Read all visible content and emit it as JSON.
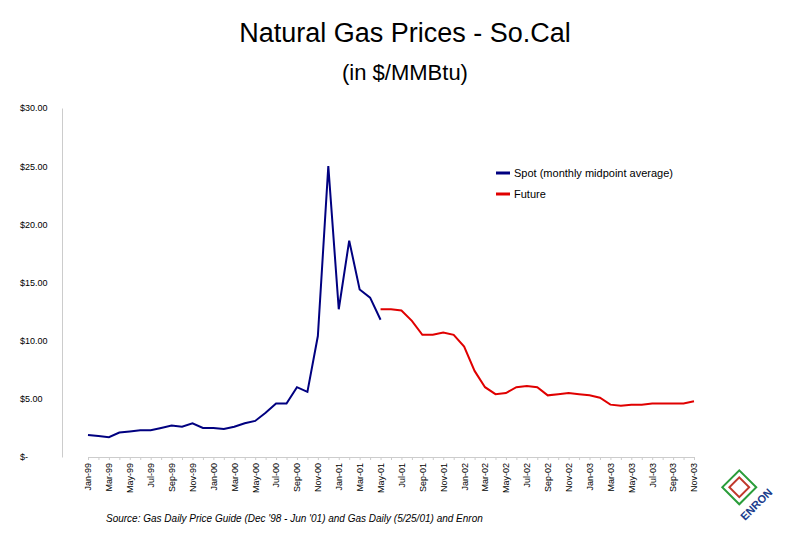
{
  "chart_data": {
    "type": "line",
    "title": "Natural Gas Prices - So.Cal",
    "subtitle": "(in $/MMBtu)",
    "source": "Source: Gas Daily Price Guide (Dec '98 - Jun '01) and Gas Daily (5/25/01) and Enron",
    "logo": "ENRON",
    "categories": [
      "Jan-99",
      null,
      "Mar-99",
      null,
      "May-99",
      null,
      "Jul-99",
      null,
      "Sep-99",
      null,
      "Nov-99",
      null,
      "Jan-00",
      null,
      "Mar-00",
      null,
      "May-00",
      null,
      "Jul-00",
      null,
      "Sep-00",
      null,
      "Nov-00",
      null,
      "Jan-01",
      null,
      "Mar-01",
      null,
      "May-01",
      null,
      "Jul-01",
      null,
      "Sep-01",
      null,
      "Nov-01",
      null,
      "Jan-02",
      null,
      "Mar-02",
      null,
      "May-02",
      null,
      "Jul-02",
      null,
      "Sep-02",
      null,
      "Nov-02",
      null,
      "Jan-03",
      null,
      "Mar-03",
      null,
      "May-03",
      null,
      "Jul-03",
      null,
      "Sep-03",
      null,
      "Nov-03"
    ],
    "series": [
      {
        "name": "Spot (monthly midpoint average)",
        "color": "#000080",
        "values": [
          1.9,
          1.8,
          1.7,
          2.1,
          2.2,
          2.3,
          2.3,
          2.5,
          2.7,
          2.6,
          2.9,
          2.5,
          2.5,
          2.4,
          2.6,
          2.9,
          3.1,
          3.8,
          4.6,
          4.6,
          6.0,
          5.6,
          10.4,
          25.0,
          12.7,
          18.6,
          14.4,
          13.7,
          11.8,
          null,
          null,
          null,
          null,
          null,
          null,
          null,
          null,
          null,
          null,
          null,
          null,
          null,
          null,
          null,
          null,
          null,
          null,
          null,
          null,
          null,
          null,
          null,
          null,
          null,
          null,
          null,
          null,
          null,
          null
        ]
      },
      {
        "name": "Future",
        "color": "#e00000",
        "values": [
          null,
          null,
          null,
          null,
          null,
          null,
          null,
          null,
          null,
          null,
          null,
          null,
          null,
          null,
          null,
          null,
          null,
          null,
          null,
          null,
          null,
          null,
          null,
          null,
          null,
          null,
          null,
          null,
          12.7,
          12.7,
          12.6,
          11.7,
          10.5,
          10.5,
          10.7,
          10.5,
          9.5,
          7.4,
          6.0,
          5.4,
          5.5,
          6.0,
          6.1,
          6.0,
          5.3,
          5.4,
          5.5,
          5.4,
          5.3,
          5.1,
          4.5,
          4.4,
          4.5,
          4.5,
          4.6,
          4.6,
          4.6,
          4.6,
          4.8
        ]
      }
    ],
    "ylim": [
      0,
      30
    ],
    "yticks": [
      {
        "value": 0,
        "label": "$-"
      },
      {
        "value": 5,
        "label": "$5.00"
      },
      {
        "value": 10,
        "label": "$10.00"
      },
      {
        "value": 15,
        "label": "$15.00"
      },
      {
        "value": 20,
        "label": "$20.00"
      },
      {
        "value": 25,
        "label": "$25.00"
      },
      {
        "value": 30,
        "label": "$30.00"
      }
    ],
    "grid": false,
    "legend": "top right"
  }
}
